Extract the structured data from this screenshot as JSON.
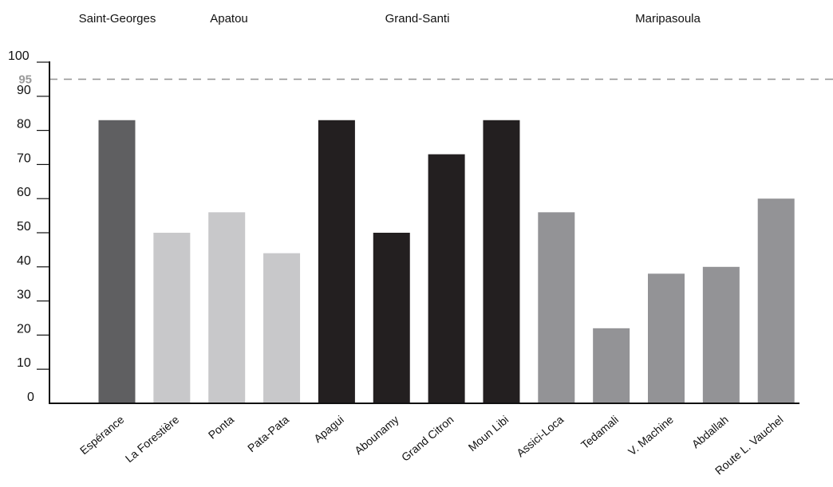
{
  "chart_data": {
    "type": "bar",
    "categories": [
      "Espérance",
      "La Forestière",
      "Ponta",
      "Pata-Pata",
      "Apagui",
      "Abounamy",
      "Grand Citron",
      "Moun Libi",
      "Assici-Loca",
      "Tedamali",
      "V. Machine",
      "Abdallah",
      "Route L. Vauchel"
    ],
    "values": [
      83,
      50,
      56,
      44,
      83,
      50,
      73,
      83,
      56,
      22,
      38,
      40,
      60
    ],
    "groups": [
      {
        "name": "Saint-Georges",
        "color": "#5f5f61",
        "categories": [
          "Espérance"
        ]
      },
      {
        "name": "Apatou",
        "color": "#c8c8ca",
        "categories": [
          "La Forestière",
          "Ponta",
          "Pata-Pata"
        ]
      },
      {
        "name": "Grand-Santi",
        "color": "#231f20",
        "categories": [
          "Apagui",
          "Abounamy",
          "Grand Citron",
          "Moun Libi"
        ]
      },
      {
        "name": "Maripasoula",
        "color": "#939396",
        "categories": [
          "Assici-Loca",
          "Tedamali",
          "V. Machine",
          "Abdallah",
          "Route L. Vauchel"
        ]
      }
    ],
    "ylim": [
      0,
      100
    ],
    "yticks": [
      0,
      10,
      20,
      30,
      40,
      50,
      60,
      70,
      80,
      90,
      100
    ],
    "reference_line": {
      "value": 95,
      "label": "95",
      "color": "#9a9a9a",
      "style": "dashed"
    },
    "grid": false,
    "xlabel": "",
    "ylabel": ""
  }
}
